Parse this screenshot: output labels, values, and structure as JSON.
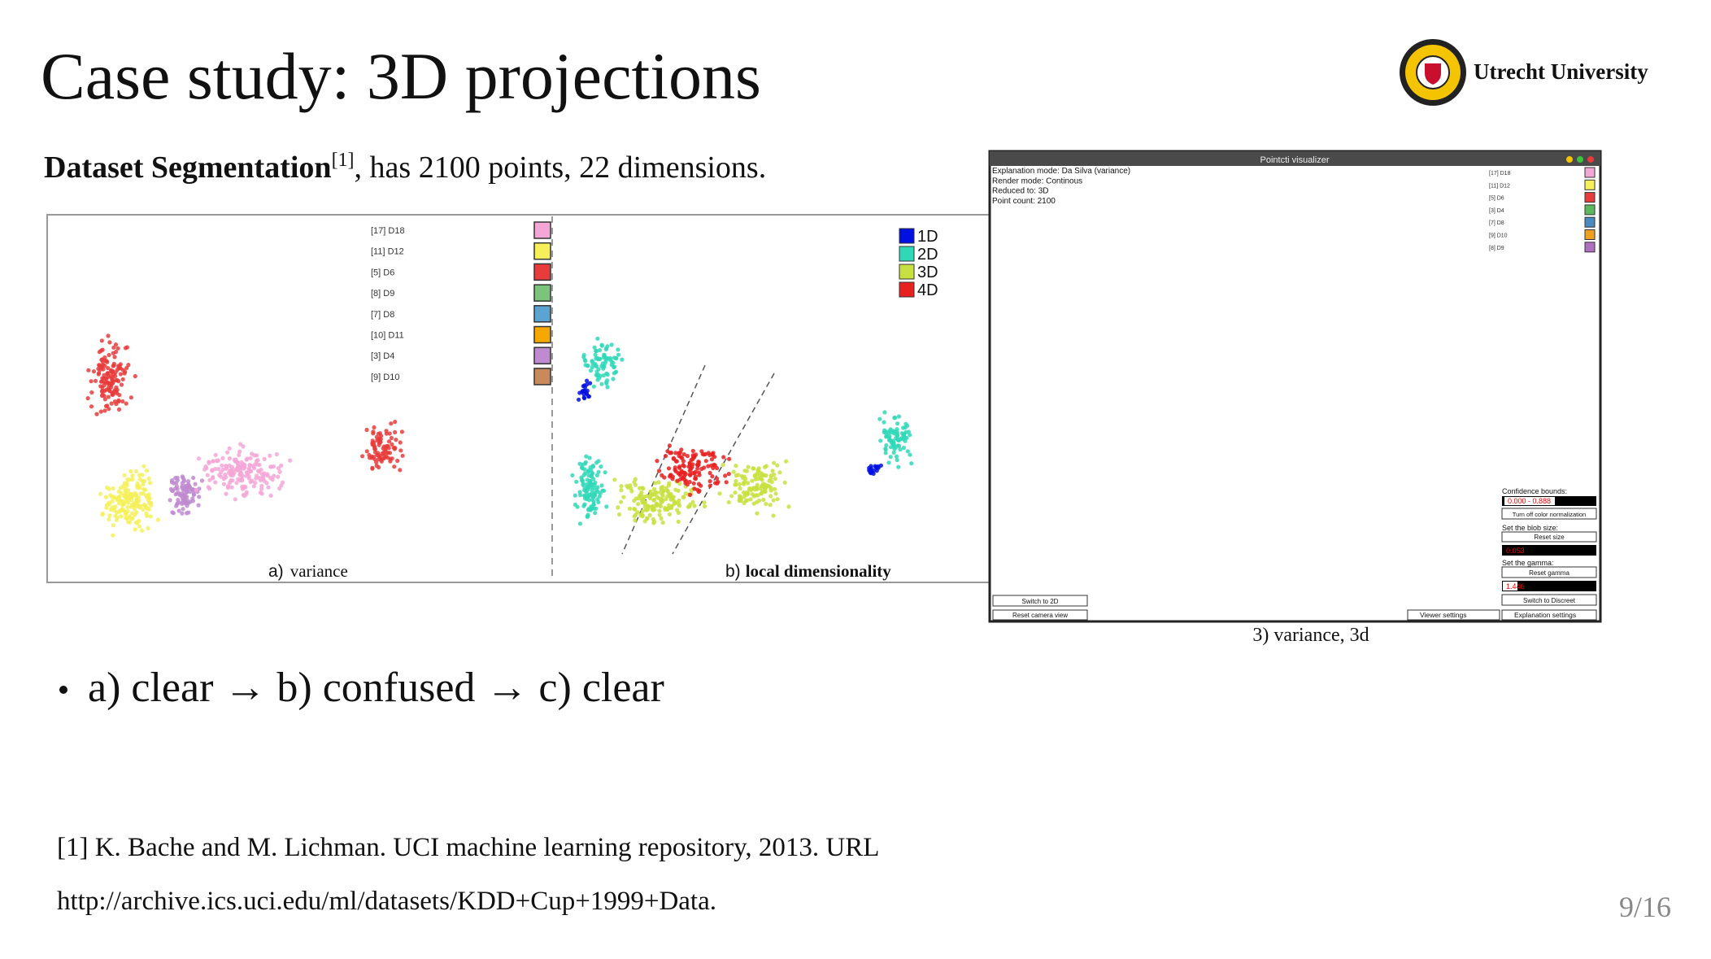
{
  "header": {
    "title": "Case study: 3D projections",
    "logo_text": "Utrecht University"
  },
  "intro": {
    "bold": "Dataset Segmentation",
    "ref": "[1]",
    "rest": ", has 2100 points, 22 dimensions."
  },
  "figure_ab": {
    "legend_a": [
      {
        "label": "[17] D18",
        "color": "#f4a6d7"
      },
      {
        "label": "[11] D12",
        "color": "#f5f05a"
      },
      {
        "label": "[5] D6",
        "color": "#e83c3c"
      },
      {
        "label": "[8] D9",
        "color": "#7cc47c"
      },
      {
        "label": "[7] D8",
        "color": "#5ba3d0"
      },
      {
        "label": "[10] D11",
        "color": "#f5a800"
      },
      {
        "label": "[3] D4",
        "color": "#c08ad0"
      },
      {
        "label": "[9] D10",
        "color": "#c88a5a"
      }
    ],
    "legend_b": [
      {
        "label": "1D",
        "color": "#0010e0"
      },
      {
        "label": "2D",
        "color": "#30d8b8"
      },
      {
        "label": "3D",
        "color": "#c8e040"
      },
      {
        "label": "4D",
        "color": "#e82020"
      }
    ],
    "caption_a": {
      "letter": "a)",
      "text": "variance"
    },
    "caption_b": {
      "letter": "b)",
      "text": "local dimensionality"
    }
  },
  "visualizer": {
    "title": "Pointcti visualizer",
    "info": [
      "Explanation mode: Da Silva (variance)",
      "Render mode: Continous",
      "Reduced to: 3D",
      "Point count: 2100"
    ],
    "legend": [
      {
        "label": "[17] D18",
        "color": "#f4a6d7"
      },
      {
        "label": "[11] D12",
        "color": "#f5f05a"
      },
      {
        "label": "[5] D6",
        "color": "#e83c3c"
      },
      {
        "label": "[3] D4",
        "color": "#5cb85c"
      },
      {
        "label": "[7] D8",
        "color": "#4a8ac0"
      },
      {
        "label": "[9] D10",
        "color": "#f0a020"
      },
      {
        "label": "[8] D9",
        "color": "#b070c0"
      }
    ],
    "confidence_label": "Confidence bounds:",
    "confidence_value": "0.000 - 0.888",
    "normalization_button": "Turn off color normalization",
    "blob_label": "Set the blob size:",
    "blob_button": "Reset size",
    "blob_value": "0.053",
    "gamma_label": "Set the gamma:",
    "gamma_button": "Reset gamma",
    "gamma_value": "1.446",
    "discreet_button": "Switch to Discreet",
    "explanation_button": "Explanation settings",
    "viewer_button": "Viewer settings",
    "switch_2d_button": "Switch to 2D",
    "camera_button": "Reset camera view"
  },
  "figure_c_caption": "3) variance, 3d",
  "bullet": "a) clear → b) confused → c) clear",
  "references": [
    "[1] K. Bache and M. Lichman. UCI machine learning repository, 2013. URL",
    "http://archive.ics.uci.edu/ml/datasets/KDD+Cup+1999+Data."
  ],
  "page_number": "9/16"
}
